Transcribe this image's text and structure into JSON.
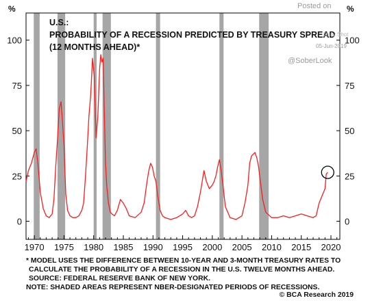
{
  "chart_data": {
    "type": "line",
    "title_lines": [
      "U.S.:",
      "PROBABILITY OF A RECESSION PREDICTED BY TREASURY SPREAD",
      "(12 MONTHS AHEAD)*"
    ],
    "unit_left": "%",
    "unit_right": "%",
    "ylim": [
      -10,
      115
    ],
    "yticks": [
      0,
      25,
      50,
      75,
      100
    ],
    "xlim": [
      1968.6,
      2021.5
    ],
    "xticks": [
      1970,
      1975,
      1980,
      1985,
      1990,
      1995,
      2000,
      2005,
      2010,
      2015,
      2020
    ],
    "series_color": "#ff1a1a",
    "recession_color": "#a6a6a6",
    "recessions": [
      [
        1969.9,
        1970.9
      ],
      [
        1973.9,
        1975.2
      ],
      [
        1980.0,
        1980.5
      ],
      [
        1981.5,
        1982.9
      ],
      [
        1990.5,
        1991.2
      ],
      [
        2001.2,
        2001.9
      ],
      [
        2007.9,
        2009.5
      ]
    ],
    "series": [
      {
        "x": [
          1968.6,
          1969.0,
          1969.5,
          1970.0,
          1970.3,
          1970.6,
          1971.0,
          1971.5,
          1972.0,
          1972.5,
          1973.0,
          1973.3,
          1973.6,
          1973.9,
          1974.2,
          1974.5,
          1974.8,
          1975.0,
          1975.3,
          1975.6,
          1976.0,
          1976.5,
          1977.0,
          1977.5,
          1978.0,
          1978.3,
          1978.6,
          1978.9,
          1979.2,
          1979.5,
          1979.8,
          1980.1,
          1980.4,
          1980.7,
          1981.0,
          1981.2,
          1981.4,
          1981.6,
          1981.8,
          1982.0,
          1982.2,
          1982.5,
          1982.8,
          1983.1,
          1983.5,
          1984.0,
          1984.5,
          1985.0,
          1985.5,
          1986.0,
          1987.0,
          1988.0,
          1988.5,
          1989.0,
          1989.3,
          1989.6,
          1989.9,
          1990.2,
          1990.5,
          1990.8,
          1991.2,
          1991.6,
          1992.0,
          1993.0,
          1994.0,
          1995.0,
          1995.5,
          1996.0,
          1996.5,
          1997.0,
          1997.5,
          1998.0,
          1998.3,
          1998.6,
          1999.0,
          1999.5,
          2000.0,
          2000.3,
          2000.6,
          2000.9,
          2001.2,
          2001.5,
          2001.8,
          2002.2,
          2003.0,
          2004.0,
          2005.0,
          2005.5,
          2006.0,
          2006.3,
          2006.6,
          2006.9,
          2007.2,
          2007.5,
          2007.8,
          2008.1,
          2008.5,
          2009.0,
          2010.0,
          2011.0,
          2012.0,
          2013.0,
          2014.0,
          2015.0,
          2016.0,
          2017.0,
          2017.5,
          2018.0,
          2018.5,
          2019.0,
          2019.2,
          2019.45
        ],
        "y": [
          22,
          28,
          32,
          38,
          40,
          32,
          16,
          7,
          3,
          2,
          4,
          12,
          30,
          45,
          62,
          66,
          52,
          42,
          15,
          6,
          3,
          2,
          2,
          3,
          6,
          10,
          24,
          40,
          58,
          70,
          90,
          80,
          46,
          58,
          84,
          92,
          88,
          90,
          60,
          32,
          20,
          10,
          5,
          4,
          3,
          6,
          12,
          10,
          7,
          3,
          2,
          5,
          10,
          22,
          28,
          32,
          30,
          25,
          22,
          14,
          6,
          3,
          2,
          1,
          2,
          4,
          6,
          3,
          2,
          3,
          8,
          16,
          22,
          28,
          22,
          18,
          20,
          22,
          25,
          30,
          34,
          28,
          20,
          8,
          2,
          1,
          3,
          10,
          20,
          32,
          36,
          37,
          38,
          35,
          30,
          22,
          12,
          5,
          2,
          2,
          3,
          2,
          3,
          4,
          3,
          2,
          3,
          10,
          14,
          18,
          26,
          27
        ]
      }
    ],
    "annotation": {
      "type": "circle",
      "x": 2019.45,
      "y": 27
    }
  },
  "watermark": {
    "posted_on": "Posted on",
    "source": "Daily Shot",
    "date": "05-Jun-2019",
    "handle": "@SoberLook"
  },
  "footnotes": [
    "* MODEL USES THE DIFFERENCE BETWEEN 10-YEAR AND 3-MONTH TREASURY RATES TO",
    "CALCULATE THE PROBABILITY OF A RECESSION IN THE U.S. TWELVE MONTHS AHEAD.",
    "SOURCE: FEDERAL RESERVE BANK OF NEW YORK.",
    "NOTE: SHADED AREAS REPRESENT NBER-DESIGNATED PERIODS OF RECESSIONS."
  ],
  "copyright": "© BCA Research 2019"
}
